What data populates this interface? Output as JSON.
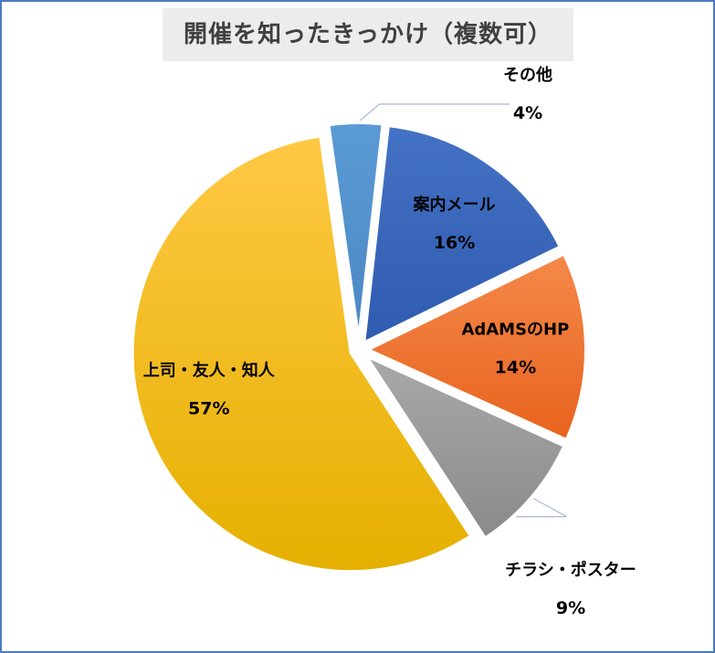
{
  "chart_data": {
    "type": "pie",
    "title": "開催を知ったきっかけ（複数可）",
    "slices": [
      {
        "label": "その他",
        "value": 4,
        "value_label": "4%",
        "color": "#5b9bd5",
        "color_dark": "#4a87c4"
      },
      {
        "label": "案内メール",
        "value": 16,
        "value_label": "16%",
        "color": "#4472c4",
        "color_dark": "#2f5bb0"
      },
      {
        "label": "AdAMSのHP",
        "value": 14,
        "value_label": "14%",
        "color": "#f4894a",
        "color_dark": "#e8631e"
      },
      {
        "label": "チラシ・ポスター",
        "value": 9,
        "value_label": "9%",
        "color": "#a9a9a9",
        "color_dark": "#8a8a8a"
      },
      {
        "label": "上司・友人・知人",
        "value": 57,
        "value_label": "57%",
        "color": "#ffc845",
        "color_dark": "#e5b000"
      }
    ],
    "legend": "none",
    "data_labels": "on-slice"
  }
}
